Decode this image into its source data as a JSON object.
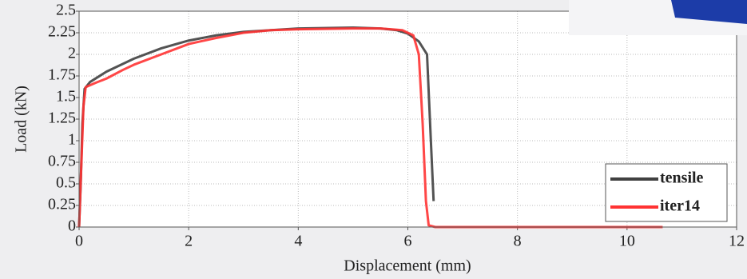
{
  "chart_data": {
    "type": "line",
    "x_label": "Displacement (mm)",
    "y_label": "Load (kN)",
    "xlim": [
      0,
      12
    ],
    "xticks": [
      0,
      2,
      4,
      6,
      8,
      10,
      12
    ],
    "ylim": [
      0,
      2.5
    ],
    "yticks": [
      0,
      0.25,
      0.5,
      0.75,
      1,
      1.25,
      1.5,
      1.75,
      2,
      2.25,
      2.5
    ],
    "grid": true,
    "legend": "lower right",
    "series": [
      {
        "name": "tensile",
        "color": "#404040",
        "x": [
          0,
          0.03,
          0.06,
          0.1,
          0.2,
          0.5,
          1,
          1.5,
          2,
          2.5,
          3,
          3.5,
          4,
          5,
          5.5,
          5.8,
          6.0,
          6.2,
          6.35,
          6.42,
          6.47
        ],
        "values": [
          0,
          0.5,
          1.2,
          1.6,
          1.68,
          1.8,
          1.95,
          2.07,
          2.16,
          2.22,
          2.26,
          2.28,
          2.3,
          2.31,
          2.3,
          2.28,
          2.24,
          2.15,
          2.0,
          1.0,
          0.3
        ]
      },
      {
        "name": "iter14",
        "color": "#ff3333",
        "x": [
          0,
          0.04,
          0.08,
          0.12,
          0.3,
          0.5,
          0.8,
          1,
          1.5,
          2,
          2.5,
          3,
          3.5,
          4,
          5,
          5.5,
          5.9,
          6.1,
          6.2,
          6.27,
          6.33,
          6.38,
          6.5,
          8,
          10,
          10.65
        ],
        "values": [
          0,
          0.7,
          1.4,
          1.62,
          1.67,
          1.72,
          1.82,
          1.88,
          2.0,
          2.12,
          2.19,
          2.25,
          2.28,
          2.29,
          2.3,
          2.3,
          2.28,
          2.22,
          2.0,
          1.2,
          0.3,
          0.02,
          0,
          0,
          0,
          0
        ]
      }
    ]
  }
}
